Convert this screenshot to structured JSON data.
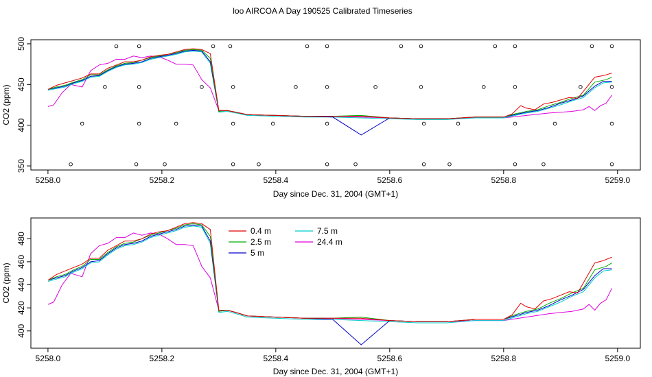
{
  "title": "loo AIRCOA A  Day 190525  Calibrated Timeseries",
  "colors": {
    "0.4 m": "#e00000",
    "2.5 m": "#00aa00",
    "5 m": "#0000cc",
    "7.5 m": "#00cccc",
    "24.4 m": "#dd00dd"
  },
  "chart_data": [
    {
      "type": "line+scatter",
      "xlabel": "Day since Dec. 31, 2004 (GMT+1)",
      "ylabel": "CO2 (ppm)",
      "xlim": [
        5257.97,
        5259.04
      ],
      "ylim": [
        345,
        505
      ],
      "xticks": [
        5258.0,
        5258.2,
        5258.4,
        5258.6,
        5258.8,
        5259.0
      ],
      "xtick_labels": [
        "5258.0",
        "5258.2",
        "5258.4",
        "5258.6",
        "5258.8",
        "5259.0"
      ],
      "yticks": [
        350,
        400,
        450,
        500
      ],
      "ytick_labels": [
        "350",
        "400",
        "450",
        "500"
      ],
      "scatter_points": [
        [
          5258.04,
          352
        ],
        [
          5258.06,
          402
        ],
        [
          5258.1,
          447
        ],
        [
          5258.12,
          497
        ],
        [
          5258.155,
          352
        ],
        [
          5258.16,
          402
        ],
        [
          5258.16,
          447
        ],
        [
          5258.16,
          497
        ],
        [
          5258.205,
          352
        ],
        [
          5258.225,
          402
        ],
        [
          5258.27,
          447
        ],
        [
          5258.29,
          497
        ],
        [
          5258.32,
          497
        ],
        [
          5258.325,
          447
        ],
        [
          5258.325,
          402
        ],
        [
          5258.325,
          352
        ],
        [
          5258.37,
          352
        ],
        [
          5258.395,
          402
        ],
        [
          5258.435,
          447
        ],
        [
          5258.455,
          497
        ],
        [
          5258.49,
          497
        ],
        [
          5258.49,
          447
        ],
        [
          5258.49,
          402
        ],
        [
          5258.49,
          352
        ],
        [
          5258.54,
          352
        ],
        [
          5258.575,
          447
        ],
        [
          5258.62,
          497
        ],
        [
          5258.655,
          497
        ],
        [
          5258.655,
          447
        ],
        [
          5258.66,
          402
        ],
        [
          5258.66,
          352
        ],
        [
          5258.705,
          352
        ],
        [
          5258.72,
          402
        ],
        [
          5258.765,
          447
        ],
        [
          5258.785,
          497
        ],
        [
          5258.82,
          497
        ],
        [
          5258.82,
          447
        ],
        [
          5258.82,
          402
        ],
        [
          5258.82,
          352
        ],
        [
          5258.87,
          352
        ],
        [
          5258.89,
          402
        ],
        [
          5258.935,
          447
        ],
        [
          5258.955,
          497
        ],
        [
          5258.99,
          497
        ],
        [
          5258.99,
          447
        ],
        [
          5258.99,
          402
        ],
        [
          5258.99,
          352
        ]
      ]
    },
    {
      "type": "line",
      "xlabel": "Day since Dec. 31, 2004 (GMT+1)",
      "ylabel": "CO2 (ppm)",
      "xlim": [
        5257.97,
        5259.04
      ],
      "ylim": [
        385,
        498
      ],
      "xticks": [
        5258.0,
        5258.2,
        5258.4,
        5258.6,
        5258.8,
        5259.0
      ],
      "xtick_labels": [
        "5258.0",
        "5258.2",
        "5258.4",
        "5258.6",
        "5258.8",
        "5259.0"
      ],
      "yticks": [
        400,
        420,
        440,
        460,
        480
      ],
      "ytick_labels": [
        "400",
        "420",
        "440",
        "460",
        "480"
      ],
      "legend": [
        {
          "name": "0.4 m"
        },
        {
          "name": "2.5 m"
        },
        {
          "name": "5 m"
        },
        {
          "name": "7.5 m"
        },
        {
          "name": "24.4 m"
        }
      ],
      "legend_placement": "top-center"
    }
  ],
  "series": [
    {
      "name": "0.4 m",
      "values": [
        [
          5258.0,
          444
        ],
        [
          5258.015,
          449
        ],
        [
          5258.03,
          452
        ],
        [
          5258.045,
          455
        ],
        [
          5258.06,
          458
        ],
        [
          5258.075,
          463
        ],
        [
          5258.09,
          463
        ],
        [
          5258.105,
          470
        ],
        [
          5258.12,
          474
        ],
        [
          5258.135,
          478
        ],
        [
          5258.15,
          478
        ],
        [
          5258.165,
          480
        ],
        [
          5258.18,
          484
        ],
        [
          5258.195,
          486
        ],
        [
          5258.21,
          487
        ],
        [
          5258.225,
          490
        ],
        [
          5258.24,
          493
        ],
        [
          5258.255,
          494
        ],
        [
          5258.27,
          493
        ],
        [
          5258.285,
          488
        ],
        [
          5258.3,
          418
        ],
        [
          5258.315,
          418
        ],
        [
          5258.33,
          416
        ],
        [
          5258.35,
          413
        ],
        [
          5258.4,
          412
        ],
        [
          5258.45,
          411
        ],
        [
          5258.5,
          411
        ],
        [
          5258.55,
          411
        ],
        [
          5258.6,
          409
        ],
        [
          5258.65,
          408
        ],
        [
          5258.7,
          408
        ],
        [
          5258.75,
          410
        ],
        [
          5258.8,
          410
        ],
        [
          5258.815,
          414
        ],
        [
          5258.83,
          424
        ],
        [
          5258.84,
          421
        ],
        [
          5258.855,
          419
        ],
        [
          5258.87,
          426
        ],
        [
          5258.885,
          428
        ],
        [
          5258.9,
          431
        ],
        [
          5258.915,
          434
        ],
        [
          5258.93,
          433
        ],
        [
          5258.945,
          446
        ],
        [
          5258.96,
          459
        ],
        [
          5258.975,
          461
        ],
        [
          5258.99,
          464
        ]
      ]
    },
    {
      "name": "2.5 m",
      "values": [
        [
          5258.0,
          444
        ],
        [
          5258.015,
          447
        ],
        [
          5258.03,
          449
        ],
        [
          5258.045,
          453
        ],
        [
          5258.06,
          456
        ],
        [
          5258.075,
          462
        ],
        [
          5258.09,
          462
        ],
        [
          5258.105,
          468
        ],
        [
          5258.12,
          473
        ],
        [
          5258.135,
          476
        ],
        [
          5258.15,
          477
        ],
        [
          5258.165,
          480
        ],
        [
          5258.18,
          483
        ],
        [
          5258.195,
          485
        ],
        [
          5258.21,
          487
        ],
        [
          5258.225,
          489
        ],
        [
          5258.24,
          492
        ],
        [
          5258.255,
          493
        ],
        [
          5258.27,
          492
        ],
        [
          5258.285,
          482
        ],
        [
          5258.3,
          417
        ],
        [
          5258.315,
          418
        ],
        [
          5258.33,
          416
        ],
        [
          5258.35,
          413
        ],
        [
          5258.4,
          412
        ],
        [
          5258.45,
          411
        ],
        [
          5258.5,
          411
        ],
        [
          5258.55,
          412
        ],
        [
          5258.6,
          409
        ],
        [
          5258.65,
          408
        ],
        [
          5258.7,
          408
        ],
        [
          5258.75,
          410
        ],
        [
          5258.8,
          410
        ],
        [
          5258.82,
          414
        ],
        [
          5258.84,
          417
        ],
        [
          5258.86,
          419
        ],
        [
          5258.88,
          424
        ],
        [
          5258.9,
          428
        ],
        [
          5258.92,
          433
        ],
        [
          5258.94,
          437
        ],
        [
          5258.96,
          453
        ],
        [
          5258.98,
          456
        ],
        [
          5258.99,
          459
        ]
      ]
    },
    {
      "name": "5 m",
      "values": [
        [
          5258.0,
          444
        ],
        [
          5258.015,
          446
        ],
        [
          5258.03,
          448
        ],
        [
          5258.045,
          452
        ],
        [
          5258.06,
          455
        ],
        [
          5258.075,
          460
        ],
        [
          5258.09,
          461
        ],
        [
          5258.105,
          467
        ],
        [
          5258.12,
          472
        ],
        [
          5258.135,
          475
        ],
        [
          5258.15,
          476
        ],
        [
          5258.165,
          478
        ],
        [
          5258.18,
          482
        ],
        [
          5258.195,
          484
        ],
        [
          5258.21,
          486
        ],
        [
          5258.225,
          488
        ],
        [
          5258.24,
          491
        ],
        [
          5258.255,
          492
        ],
        [
          5258.27,
          491
        ],
        [
          5258.285,
          478
        ],
        [
          5258.3,
          417
        ],
        [
          5258.315,
          418
        ],
        [
          5258.33,
          416
        ],
        [
          5258.35,
          413
        ],
        [
          5258.4,
          412
        ],
        [
          5258.45,
          411
        ],
        [
          5258.5,
          410
        ],
        [
          5258.55,
          388
        ],
        [
          5258.6,
          409
        ],
        [
          5258.65,
          408
        ],
        [
          5258.7,
          408
        ],
        [
          5258.75,
          410
        ],
        [
          5258.8,
          410
        ],
        [
          5258.82,
          413
        ],
        [
          5258.84,
          416
        ],
        [
          5258.86,
          418
        ],
        [
          5258.88,
          422
        ],
        [
          5258.9,
          427
        ],
        [
          5258.92,
          431
        ],
        [
          5258.94,
          436
        ],
        [
          5258.96,
          448
        ],
        [
          5258.975,
          454
        ],
        [
          5258.99,
          454
        ]
      ]
    },
    {
      "name": "7.5 m",
      "values": [
        [
          5258.0,
          443
        ],
        [
          5258.015,
          445
        ],
        [
          5258.03,
          447
        ],
        [
          5258.045,
          451
        ],
        [
          5258.06,
          454
        ],
        [
          5258.075,
          459
        ],
        [
          5258.09,
          460
        ],
        [
          5258.105,
          466
        ],
        [
          5258.12,
          471
        ],
        [
          5258.135,
          474
        ],
        [
          5258.15,
          475
        ],
        [
          5258.165,
          477
        ],
        [
          5258.18,
          481
        ],
        [
          5258.195,
          483
        ],
        [
          5258.21,
          485
        ],
        [
          5258.225,
          487
        ],
        [
          5258.24,
          490
        ],
        [
          5258.255,
          491
        ],
        [
          5258.27,
          490
        ],
        [
          5258.285,
          476
        ],
        [
          5258.3,
          416
        ],
        [
          5258.315,
          417
        ],
        [
          5258.33,
          415
        ],
        [
          5258.35,
          412
        ],
        [
          5258.4,
          411
        ],
        [
          5258.45,
          410
        ],
        [
          5258.5,
          410
        ],
        [
          5258.55,
          409
        ],
        [
          5258.6,
          408
        ],
        [
          5258.65,
          407
        ],
        [
          5258.7,
          407
        ],
        [
          5258.75,
          409
        ],
        [
          5258.8,
          409
        ],
        [
          5258.82,
          412
        ],
        [
          5258.84,
          415
        ],
        [
          5258.86,
          417
        ],
        [
          5258.88,
          421
        ],
        [
          5258.9,
          425
        ],
        [
          5258.92,
          430
        ],
        [
          5258.94,
          434
        ],
        [
          5258.96,
          446
        ],
        [
          5258.975,
          452
        ],
        [
          5258.99,
          453
        ]
      ]
    },
    {
      "name": "24.4 m",
      "values": [
        [
          5258.0,
          423
        ],
        [
          5258.01,
          425
        ],
        [
          5258.025,
          440
        ],
        [
          5258.04,
          450
        ],
        [
          5258.06,
          447
        ],
        [
          5258.075,
          467
        ],
        [
          5258.09,
          474
        ],
        [
          5258.105,
          476
        ],
        [
          5258.12,
          481
        ],
        [
          5258.135,
          481
        ],
        [
          5258.15,
          485
        ],
        [
          5258.165,
          483
        ],
        [
          5258.18,
          485
        ],
        [
          5258.195,
          484
        ],
        [
          5258.21,
          480
        ],
        [
          5258.225,
          475
        ],
        [
          5258.24,
          475
        ],
        [
          5258.255,
          474
        ],
        [
          5258.27,
          456
        ],
        [
          5258.285,
          446
        ],
        [
          5258.3,
          418
        ],
        [
          5258.315,
          418
        ],
        [
          5258.33,
          416
        ],
        [
          5258.35,
          413
        ],
        [
          5258.4,
          412
        ],
        [
          5258.45,
          411
        ],
        [
          5258.5,
          411
        ],
        [
          5258.55,
          410
        ],
        [
          5258.6,
          409
        ],
        [
          5258.65,
          408
        ],
        [
          5258.7,
          408
        ],
        [
          5258.75,
          409
        ],
        [
          5258.8,
          409
        ],
        [
          5258.84,
          412
        ],
        [
          5258.88,
          415
        ],
        [
          5258.9,
          416
        ],
        [
          5258.92,
          417
        ],
        [
          5258.94,
          419
        ],
        [
          5258.95,
          423
        ],
        [
          5258.96,
          418
        ],
        [
          5258.97,
          424
        ],
        [
          5258.98,
          427
        ],
        [
          5258.99,
          437
        ]
      ]
    }
  ]
}
